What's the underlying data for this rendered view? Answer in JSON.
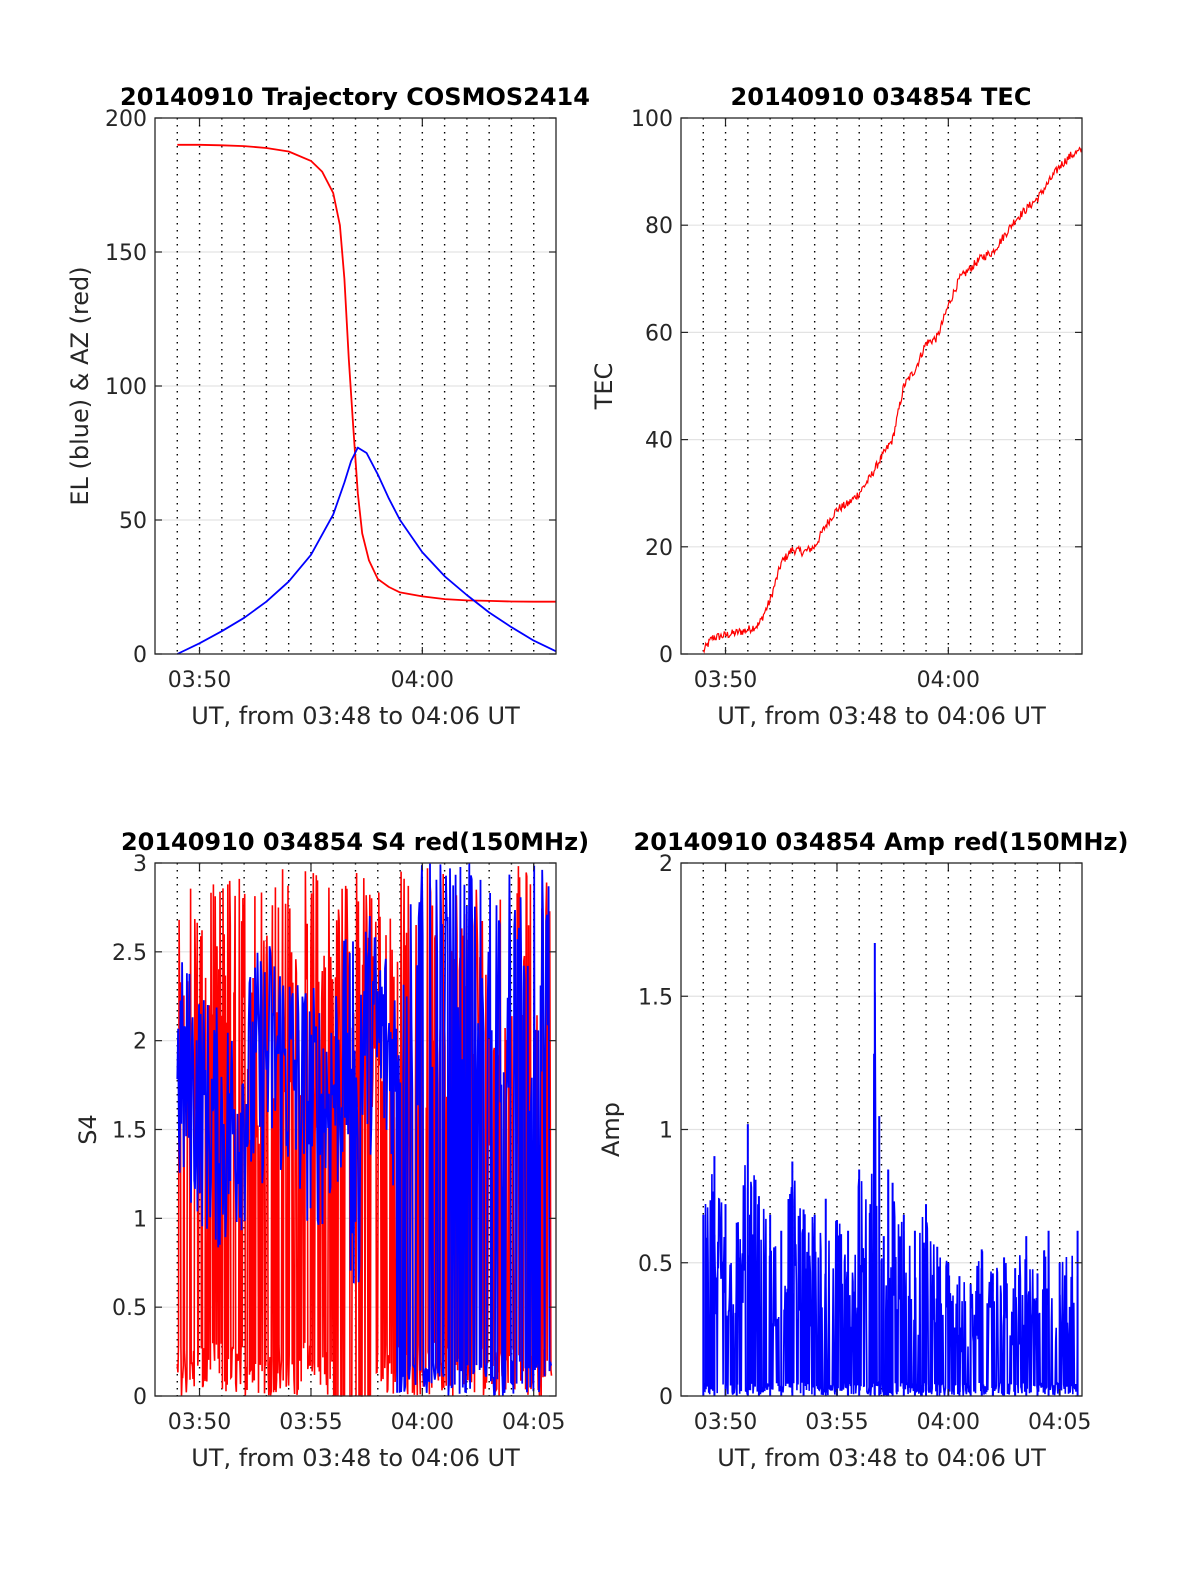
{
  "chart_data": [
    {
      "type": "line",
      "title": "20140910 Trajectory COSMOS2414",
      "xlabel": "UT, from 03:48 to 04:06 UT",
      "ylabel": "EL (blue) & AZ (red)",
      "xlim": [
        3.8,
        4.1
      ],
      "ylim": [
        0,
        200
      ],
      "yticks": [
        0,
        50,
        100,
        150,
        200
      ],
      "xticks": [
        {
          "v": 3.8333,
          "label": "03:50"
        },
        {
          "v": 4.0,
          "label": "04:00"
        }
      ],
      "grid": "dotted vertical lines every minute, light horizontal lines",
      "series": [
        {
          "color": "#ff0000",
          "role": "AZ",
          "x": [
            3.8167,
            3.8333,
            3.85,
            3.8667,
            3.8833,
            3.9,
            3.9167,
            3.925,
            3.9333,
            3.9383,
            3.9417,
            3.945,
            3.9483,
            3.9517,
            3.955,
            3.96,
            3.9667,
            3.975,
            3.9833,
            4.0,
            4.0167,
            4.0333,
            4.05,
            4.0667,
            4.0833,
            4.1
          ],
          "y": [
            190,
            190,
            189.8,
            189.5,
            188.8,
            187.5,
            184,
            180,
            172,
            160,
            140,
            110,
            85,
            60,
            45,
            35,
            28,
            25,
            23,
            21.5,
            20.5,
            20,
            19.8,
            19.6,
            19.5,
            19.5
          ]
        },
        {
          "color": "#0000ff",
          "role": "EL",
          "x": [
            3.8167,
            3.8333,
            3.85,
            3.8667,
            3.8833,
            3.9,
            3.9167,
            3.9333,
            3.9417,
            3.9467,
            3.9517,
            3.9583,
            3.9667,
            3.975,
            3.9833,
            4.0,
            4.0167,
            4.0333,
            4.05,
            4.0667,
            4.0833,
            4.1
          ],
          "y": [
            0,
            4,
            8.5,
            13.5,
            19.5,
            27,
            37,
            52,
            64,
            72,
            77,
            75,
            67,
            58,
            50,
            38,
            29,
            22,
            15.5,
            10,
            5,
            1
          ]
        }
      ]
    },
    {
      "type": "line",
      "title": "20140910 034854 TEC",
      "xlabel": "UT, from 03:48 to 04:06 UT",
      "ylabel": "TEC",
      "xlim": [
        3.8,
        4.1
      ],
      "ylim": [
        0,
        100
      ],
      "yticks": [
        0,
        20,
        40,
        60,
        80,
        100
      ],
      "xticks": [
        {
          "v": 3.8333,
          "label": "03:50"
        },
        {
          "v": 4.0,
          "label": "04:00"
        }
      ],
      "series": [
        {
          "color": "#ff0000",
          "x": [
            3.8167,
            3.8233,
            3.8333,
            3.85,
            3.8583,
            3.8667,
            3.875,
            3.8833,
            3.8917,
            3.9,
            3.9083,
            3.9167,
            3.925,
            3.9333,
            3.9417,
            3.9483,
            3.9583,
            3.9667,
            3.975,
            3.9833,
            3.9917,
            4.0,
            4.0083,
            4.0167,
            4.025,
            4.0333,
            4.0417,
            4.05,
            4.0583,
            4.0667,
            4.075,
            4.0833,
            4.0917,
            4.1
          ],
          "y": [
            0.5,
            3,
            3.5,
            4.5,
            5.5,
            10,
            17,
            19.5,
            19,
            20,
            24,
            27,
            28,
            30,
            33,
            36,
            40,
            50,
            53,
            58,
            59,
            65,
            70,
            72,
            74,
            75,
            78,
            81,
            83,
            85,
            88,
            91,
            93,
            94
          ]
        }
      ]
    },
    {
      "type": "line",
      "title": "20140910 034854 S4 red(150MHz)",
      "xlabel": "UT, from 03:48 to 04:06 UT",
      "ylabel": "S4",
      "xlim": [
        3.8,
        4.1
      ],
      "ylim": [
        0,
        3
      ],
      "yticks": [
        0,
        0.5,
        1,
        1.5,
        2,
        2.5,
        3
      ],
      "xticks": [
        {
          "v": 3.8333,
          "label": "03:50"
        },
        {
          "v": 3.9167,
          "label": "03:55"
        },
        {
          "v": 4.0,
          "label": "04:00"
        },
        {
          "v": 4.0833,
          "label": "04:05"
        }
      ],
      "series": [
        {
          "color": "#ff0000",
          "role": "noisy S4 trace, spikes between 0 and 3",
          "x_range": [
            3.8167,
            4.0967
          ],
          "y_range": [
            0,
            3
          ]
        },
        {
          "color": "#0000ff",
          "role": "noisy S4 trace, mostly 1.4 to 2.6, dropouts to 0 after 03:59",
          "x_range": [
            3.8167,
            4.0967
          ],
          "y_range": [
            0,
            3
          ]
        }
      ]
    },
    {
      "type": "line",
      "title": "20140910 034854 Amp red(150MHz)",
      "xlabel": "UT, from 03:48 to 04:06 UT",
      "ylabel": "Amp",
      "xlim": [
        3.8,
        4.1
      ],
      "ylim": [
        0,
        2
      ],
      "yticks": [
        0,
        0.5,
        1,
        1.5,
        2
      ],
      "xticks": [
        {
          "v": 3.8333,
          "label": "03:50"
        },
        {
          "v": 3.9167,
          "label": "03:55"
        },
        {
          "v": 4.0,
          "label": "04:00"
        },
        {
          "v": 4.0833,
          "label": "04:05"
        }
      ],
      "series": [
        {
          "color": "#0000ff",
          "envelope_x": [
            3.8167,
            3.825,
            3.8333,
            3.8417,
            3.85,
            3.8583,
            3.8667,
            3.875,
            3.8833,
            3.8917,
            3.9,
            3.9083,
            3.9167,
            3.925,
            3.9333,
            3.9417,
            3.945,
            3.9483,
            3.9517,
            3.955,
            3.9583,
            3.9667,
            3.975,
            3.9833,
            3.9917,
            4.0,
            4.0083,
            4.0167,
            4.025,
            4.0333,
            4.0417,
            4.05,
            4.0583,
            4.0667,
            4.075,
            4.0833,
            4.0967
          ],
          "envelope_y": [
            0.68,
            0.9,
            0.72,
            0.65,
            1.02,
            0.75,
            0.68,
            0.62,
            0.88,
            0.7,
            0.68,
            0.74,
            0.66,
            0.62,
            0.85,
            0.72,
            1.7,
            1.05,
            0.6,
            0.85,
            0.8,
            0.68,
            0.62,
            0.72,
            0.56,
            0.5,
            0.45,
            0.42,
            0.55,
            0.46,
            0.52,
            0.48,
            0.6,
            0.46,
            0.62,
            0.5,
            0.62
          ]
        }
      ]
    }
  ]
}
